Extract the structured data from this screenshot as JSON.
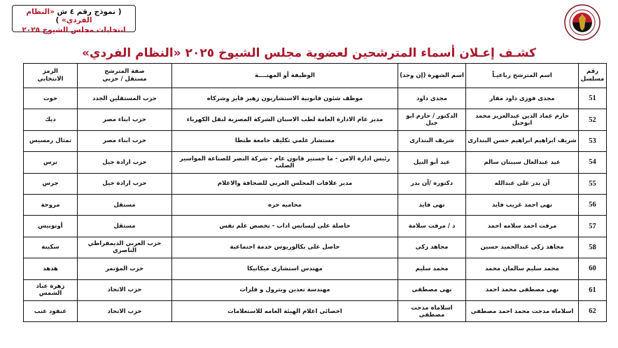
{
  "form_box": {
    "line1_prefix": "( نموذج رقم ٤ ش ",
    "line1_highlight": "«النظام الفردي»",
    "line1_suffix": " )",
    "line2": "انتخابات مجلس الشيوخ ٢٠٢٥"
  },
  "logo": {
    "text": "National Election Authority"
  },
  "title": "كشـف إعـلان أسماء المترشحين لعضوية مجلس الشيوخ ٢٠٢٥ «النظام الفردي»",
  "colors": {
    "accent": "#a8172a"
  },
  "table": {
    "headers": {
      "num": "رقم مسلسل",
      "name": "اسم المترشح رباعيـاً",
      "nickname": "اسم الشهرة (إن وجد)",
      "job": "الوظيفة أو المهنــــة",
      "status_line1": "صفة المترشح",
      "status_line2": "مستقل / حزبي",
      "symbol_line1": "الرمز",
      "symbol_line2": "الانتخابي"
    },
    "rows": [
      {
        "num": "51",
        "name": "مجدى فوزى داود مقار",
        "nickname": "مجدى داود",
        "job": "موظف شئون قانونية الاستشاريون زهير فايز وشركاه",
        "status": "حزب المستقلين الجدد",
        "symbol": "حوت"
      },
      {
        "num": "52",
        "name": "حازم عماد الدين عبدالعزيز محمد ابوجبل",
        "nickname": "الدكتور / حازم ابو جبل",
        "job": "مدير عام الادارة العامة لطب الاسنان الشركة المصرية لنقل الكهرباء",
        "status": "حزب ابناء مصر",
        "symbol": "ديك"
      },
      {
        "num": "53",
        "name": "شريف ابراهيم ابراهيم حسن البندارى",
        "nickname": "شريف البندارى",
        "job": "مستشار علمي تكليف جامعة طنطا",
        "status": "حزب ابناء مصر",
        "symbol": "تمثال رمسيس"
      },
      {
        "num": "54",
        "name": "عيد عبدالعال سيبتان سالم",
        "nickname": "عيد أبو النيل",
        "job": "رئيس ادارة الامن - ما جستير قانون عام - شركة النصر للصناعة المواسير الصلب",
        "status": "حزب ارادة جيل",
        "symbol": "ترس"
      },
      {
        "num": "55",
        "name": "آن بدر على عبدالله",
        "nickname": "دكتوره /آن بدر",
        "job": "مدير علاقات المجلس العربي للصحافة والاعلام",
        "status": "حزب ارادة جيل",
        "symbol": "جرس"
      },
      {
        "num": "56",
        "name": "نهى احمد غريب فايد",
        "nickname": "نهى فايد",
        "job": "محاميه حره",
        "status": "مستقل",
        "symbol": "مروحة"
      },
      {
        "num": "57",
        "name": "مرفت احمد سلامه احمد",
        "nickname": "د / مرفت سلامة",
        "job": "حاصلة على ليسانس اداب - تخصص علم نفس",
        "status": "مستقل",
        "symbol": "أوتوبيس"
      },
      {
        "num": "58",
        "name": "مجاهد زكى عبدالحميد حسين",
        "nickname": "مجاهد زكى",
        "job": "حاصل على بكالوريوس خدمة اجتماعية",
        "status": "حزب العربي الديمقراطي الناصري",
        "symbol": "سكينة"
      },
      {
        "num": "60",
        "name": "محمد سليم سالمان محمد",
        "nickname": "محمد سليم",
        "job": "مهندس استشارى ميكانيكا",
        "status": "حزب المؤتمر",
        "symbol": "هدهد"
      },
      {
        "num": "61",
        "name": "نهى مصطفى محمد احمد",
        "nickname": "نهى مصطفى",
        "job": "مهندسة تعدين وبترول و فلزات",
        "status": "حزب الاتحاد",
        "symbol": "زهرة عباد الشمس"
      },
      {
        "num": "62",
        "name": "اسلاماه مدحت محمد احمد مصطفى",
        "nickname": "اسلاماه مدحت مصطفى",
        "job": "اخصائى اعلام الهيئة العامه للاستعلامات",
        "status": "حزب الاتحاد",
        "symbol": "عنقود عنب"
      }
    ]
  }
}
